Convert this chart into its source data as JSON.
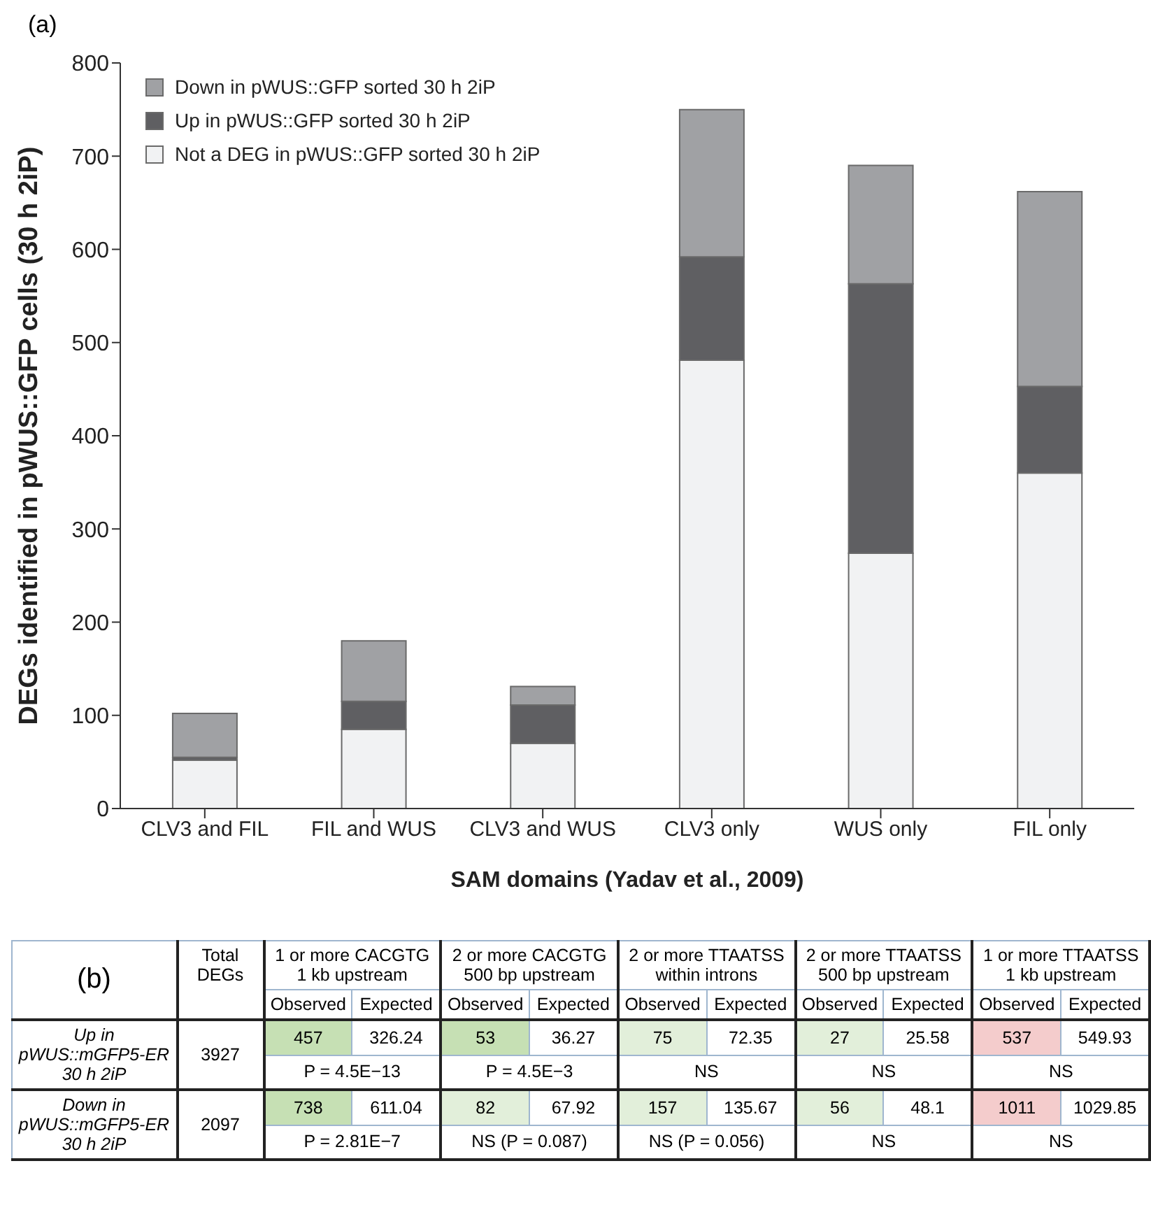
{
  "chart_data": [
    {
      "type": "bar",
      "title": "(a)",
      "xlabel": "SAM domains (Yadav et al., 2009)",
      "ylabel": "DEGs identified in pWUS::GFP cells (30 h 2iP)",
      "categories": [
        "CLV3 and FIL",
        "FIL and WUS",
        "CLV3 and WUS",
        "CLV3 only",
        "WUS only",
        "FIL only"
      ],
      "stacked": true,
      "series": [
        {
          "name": "Not a DEG in pWUS::GFP sorted 30 h 2iP",
          "color": "#f1f2f3",
          "values": [
            52,
            85,
            70,
            481,
            274,
            360
          ]
        },
        {
          "name": "Up in pWUS::GFP sorted 30 h 2iP",
          "color": "#5f5f62",
          "values": [
            3,
            30,
            41,
            111,
            289,
            93
          ]
        },
        {
          "name": "Down in pWUS::GFP sorted 30 h 2iP",
          "color": "#a0a1a4",
          "values": [
            47,
            65,
            20,
            158,
            127,
            209
          ]
        }
      ],
      "ylim": [
        0,
        800
      ],
      "yticks": [
        0,
        100,
        200,
        300,
        400,
        500,
        600,
        700,
        800
      ],
      "legend": "top left"
    },
    {
      "type": "other",
      "title": "(b)",
      "categories": [
        "Total DEGs",
        "1 or more CACGTG 1 kb upstream",
        "2 or more CACGTG 500 bp upstream",
        "2 or more TTAATSS within introns",
        "2 or more TTAATSS 500 bp upstream",
        "1 or more TTAATSS 1 kb upstream"
      ],
      "y_categories": [
        "Up in pWUS::mGFP5-ER 30 h 2iP",
        "Down in pWUS::mGFP5-ER 30 h 2iP"
      ],
      "annotations": [
        "Observed",
        "Expected",
        "3927",
        "457",
        "326.24",
        "53",
        "36.27",
        "75",
        "72.35",
        "27",
        "25.58",
        "537",
        "549.93",
        "P = 4.5E−13",
        "P = 4.5E−3",
        "NS",
        "NS",
        "NS",
        "2097",
        "738",
        "611.04",
        "82",
        "67.92",
        "157",
        "135.67",
        "56",
        "48.1",
        "1011",
        "1029.85",
        "P = 2.81E−7",
        "NS (P = 0.087)",
        "NS (P = 0.056)",
        "NS",
        "NS"
      ],
      "colors": [
        null,
        "#c6e0b4",
        null,
        "#c6e0b4",
        null,
        "#e2efda",
        null,
        "#e2efda",
        null,
        "#f4cccc",
        null,
        null,
        "#c6e0b4",
        null,
        "#e2efda",
        null,
        "#e2efda",
        null,
        "#e2efda",
        null,
        "#f4cccc",
        null
      ]
    }
  ]
}
